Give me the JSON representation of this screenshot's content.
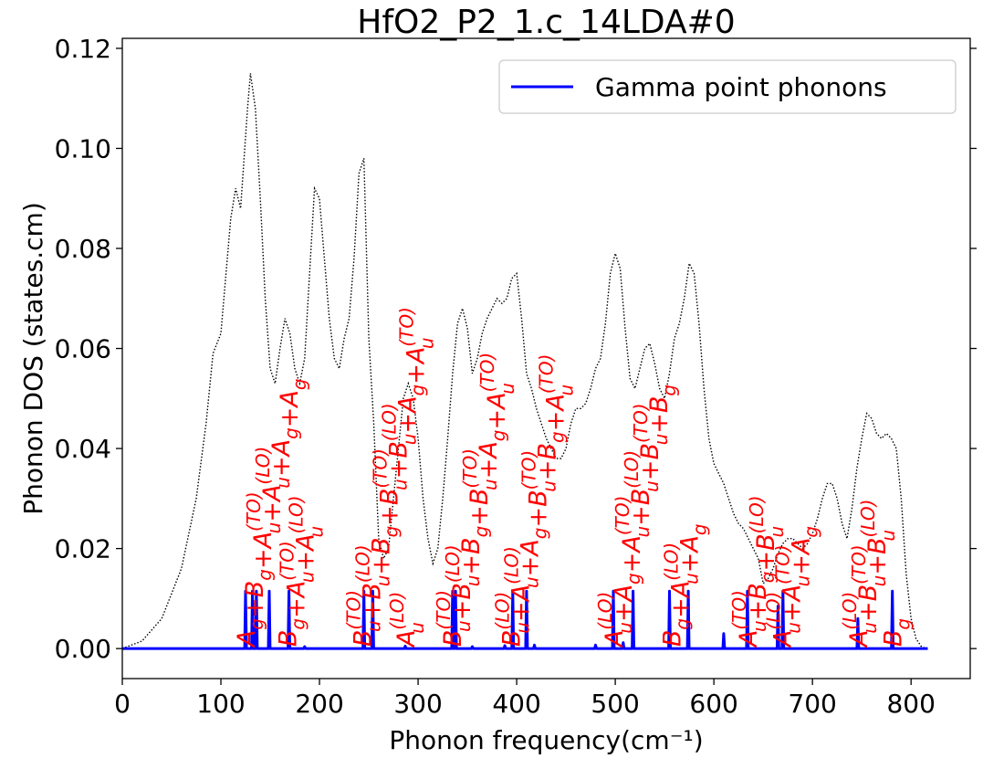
{
  "chart_data": {
    "type": "line",
    "title": "HfO2_P2_1.c_14LDA#0",
    "xlabel": "Phonon frequency(cm⁻¹)",
    "ylabel": "Phonon DOS (states.cm)",
    "xlim": [
      0,
      860
    ],
    "ylim": [
      -0.006,
      0.122
    ],
    "xticks": [
      "0",
      "100",
      "200",
      "300",
      "400",
      "500",
      "600",
      "700",
      "800"
    ],
    "yticks": [
      "0.00",
      "0.02",
      "0.04",
      "0.06",
      "0.08",
      "0.10",
      "0.12"
    ],
    "grid": false,
    "legend": {
      "position": "top-right",
      "entries": [
        "Gamma point phonons"
      ]
    },
    "colors": {
      "gamma": "#0000ff",
      "dos": "#000000",
      "labels": "#ff0000"
    },
    "series": [
      {
        "name": "Gamma point phonons",
        "style": "solid",
        "peaks": [
          {
            "x": 125,
            "y": 0.0115
          },
          {
            "x": 132,
            "y": 0.0115
          },
          {
            "x": 136,
            "y": 0.0115
          },
          {
            "x": 149,
            "y": 0.0115
          },
          {
            "x": 169,
            "y": 0.0115
          },
          {
            "x": 245,
            "y": 0.0115
          },
          {
            "x": 254,
            "y": 0.0115
          },
          {
            "x": 335,
            "y": 0.0115
          },
          {
            "x": 338,
            "y": 0.0115
          },
          {
            "x": 396,
            "y": 0.0115
          },
          {
            "x": 410,
            "y": 0.0115
          },
          {
            "x": 498,
            "y": 0.0115
          },
          {
            "x": 518,
            "y": 0.0115
          },
          {
            "x": 555,
            "y": 0.0115
          },
          {
            "x": 574,
            "y": 0.0115
          },
          {
            "x": 610,
            "y": 0.003
          },
          {
            "x": 634,
            "y": 0.0115
          },
          {
            "x": 665,
            "y": 0.0085
          },
          {
            "x": 670,
            "y": 0.0115
          },
          {
            "x": 746,
            "y": 0.006
          },
          {
            "x": 781,
            "y": 0.0115
          },
          {
            "x": 185,
            "y": 0.0004
          },
          {
            "x": 287,
            "y": 0.0005
          },
          {
            "x": 355,
            "y": 0.0004
          },
          {
            "x": 388,
            "y": 0.0006
          },
          {
            "x": 418,
            "y": 0.0007
          },
          {
            "x": 480,
            "y": 0.0007
          },
          {
            "x": 508,
            "y": 0.0012
          }
        ],
        "x_range": [
          0,
          817
        ]
      },
      {
        "style": "dotted",
        "x": [
          0,
          20,
          40,
          60,
          75,
          85,
          92,
          100,
          110,
          115,
          120,
          127,
          130,
          135,
          140,
          145,
          150,
          155,
          160,
          165,
          170,
          175,
          180,
          185,
          190,
          195,
          200,
          205,
          210,
          215,
          220,
          225,
          230,
          235,
          240,
          245,
          250,
          255,
          260,
          265,
          270,
          275,
          280,
          285,
          290,
          295,
          300,
          305,
          310,
          315,
          320,
          325,
          330,
          335,
          340,
          345,
          350,
          355,
          360,
          365,
          370,
          375,
          380,
          385,
          390,
          395,
          400,
          405,
          410,
          415,
          420,
          425,
          430,
          435,
          440,
          445,
          450,
          455,
          460,
          465,
          470,
          475,
          480,
          485,
          490,
          495,
          500,
          505,
          510,
          515,
          520,
          525,
          530,
          535,
          540,
          545,
          550,
          555,
          560,
          565,
          570,
          575,
          580,
          585,
          590,
          595,
          600,
          605,
          610,
          615,
          620,
          625,
          630,
          635,
          640,
          645,
          650,
          655,
          660,
          665,
          670,
          675,
          680,
          685,
          690,
          695,
          700,
          705,
          710,
          715,
          720,
          725,
          730,
          735,
          740,
          745,
          750,
          755,
          760,
          765,
          770,
          775,
          780,
          785,
          790,
          795,
          800,
          805,
          810,
          815,
          817
        ],
        "y": [
          0.0,
          0.0015,
          0.006,
          0.016,
          0.03,
          0.045,
          0.059,
          0.063,
          0.086,
          0.092,
          0.088,
          0.108,
          0.115,
          0.108,
          0.09,
          0.07,
          0.056,
          0.053,
          0.06,
          0.066,
          0.063,
          0.056,
          0.053,
          0.058,
          0.075,
          0.092,
          0.09,
          0.078,
          0.066,
          0.058,
          0.056,
          0.062,
          0.066,
          0.078,
          0.095,
          0.098,
          0.062,
          0.045,
          0.022,
          0.018,
          0.02,
          0.03,
          0.04,
          0.05,
          0.053,
          0.05,
          0.042,
          0.03,
          0.022,
          0.017,
          0.02,
          0.03,
          0.042,
          0.055,
          0.065,
          0.068,
          0.064,
          0.055,
          0.058,
          0.063,
          0.066,
          0.068,
          0.07,
          0.069,
          0.07,
          0.074,
          0.075,
          0.066,
          0.055,
          0.052,
          0.048,
          0.045,
          0.042,
          0.04,
          0.038,
          0.038,
          0.04,
          0.045,
          0.048,
          0.048,
          0.049,
          0.052,
          0.056,
          0.058,
          0.065,
          0.075,
          0.079,
          0.076,
          0.064,
          0.054,
          0.052,
          0.056,
          0.06,
          0.061,
          0.057,
          0.052,
          0.05,
          0.055,
          0.062,
          0.065,
          0.07,
          0.077,
          0.075,
          0.065,
          0.052,
          0.042,
          0.037,
          0.035,
          0.033,
          0.03,
          0.027,
          0.025,
          0.024,
          0.022,
          0.02,
          0.018,
          0.013,
          0.014,
          0.016,
          0.019,
          0.021,
          0.022,
          0.022,
          0.021,
          0.02,
          0.021,
          0.023,
          0.026,
          0.03,
          0.033,
          0.033,
          0.03,
          0.025,
          0.022,
          0.028,
          0.036,
          0.042,
          0.047,
          0.046,
          0.043,
          0.042,
          0.043,
          0.042,
          0.04,
          0.03,
          0.015,
          0.006,
          0.002,
          0.0005,
          0.0,
          0.0
        ]
      }
    ],
    "annotations": [
      {
        "x": 125,
        "label": "A_g+B_g+A_u^{(TO)}+A_u^{(LO)}+A_g+A_g"
      },
      {
        "x": 167,
        "label": "B_g+A_u^{(TO)}+A_u^{(LO)}"
      },
      {
        "x": 243,
        "label": "B_u^{(TO)}+B_u^{(LO)}+B_g+B_u^{(TO)}+B_u^{(LO)}+A_g+A_u^{(TO)}"
      },
      {
        "x": 287,
        "label": "A_u^{(LO)}"
      },
      {
        "x": 334,
        "label": "B_u^{(TO)}+B_u^{(LO)}+B_g+B_u^{(TO)}+A_g+A_u^{(TO)}"
      },
      {
        "x": 394,
        "label": "B_u^{(LO)}+A_u^{(LO)}+A_g+B_u^{(TO)}+B_g+A_u^{(TO)}"
      },
      {
        "x": 498,
        "label": "A_u^{(LO)}+A_g+A_u^{(TO)}+B_u^{(LO)}+B_u^{(TO)}+B_g"
      },
      {
        "x": 557,
        "label": "B_g+A_u^{(LO)}+A_g"
      },
      {
        "x": 634,
        "label": "A_u^{(TO)}+B_g+B_u^{(LO)}"
      },
      {
        "x": 669,
        "label": "A_u^{(LO)}+A_u^{(TO)}+A_g"
      },
      {
        "x": 746,
        "label": "A_u^{(LO)}+B_u^{(TO)}+B_u^{(LO)}"
      },
      {
        "x": 781,
        "label": "B_g"
      }
    ]
  }
}
